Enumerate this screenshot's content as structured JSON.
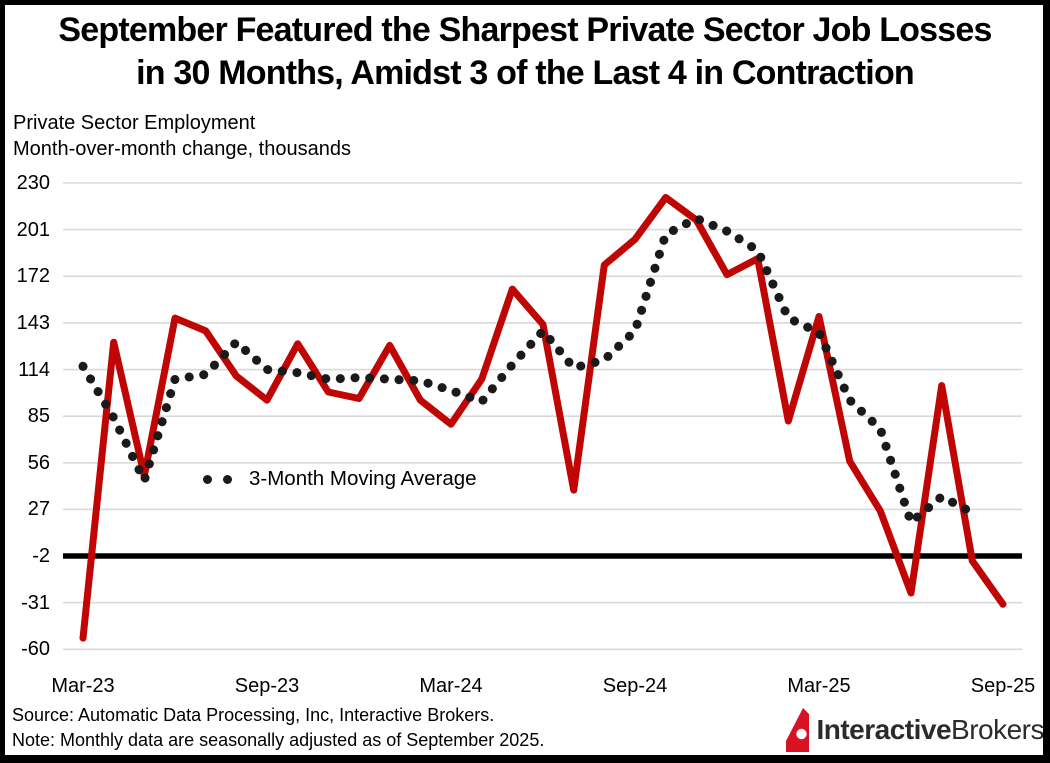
{
  "header": {
    "title_line1": "September Featured the Sharpest Private Sector Job Losses",
    "title_line2": "in 30 Months, Amidst 3 of the Last 4 in Contraction",
    "subtitle_line1": "Private Sector Employment",
    "subtitle_line2": "Month-over-month change, thousands"
  },
  "legend": {
    "label": "3-Month Moving Average"
  },
  "footer": {
    "source": "Source: Automatic Data Processing, Inc, Interactive Brokers.",
    "note": "Note: Monthly data are seasonally adjusted as of September 2025."
  },
  "logo": {
    "text_bold": "Interactive",
    "text_regular": "Brokers",
    "glyph": "ibkr-flag-icon"
  },
  "colors": {
    "line_red": "#c00505",
    "ma_dot": "#1a1a1a",
    "gridline": "#d9d9d9",
    "baseline": "#000000",
    "logo_red": "#d81222",
    "text": "#000000"
  },
  "chart_data": {
    "type": "line",
    "title": "September Featured the Sharpest Private Sector Job Losses in 30 Months, Amidst 3 of the Last 4 in Contraction",
    "xlabel": "",
    "ylabel": "Month-over-month change, thousands",
    "x": [
      "Mar-23",
      "Apr-23",
      "May-23",
      "Jun-23",
      "Jul-23",
      "Aug-23",
      "Sep-23",
      "Oct-23",
      "Nov-23",
      "Dec-23",
      "Jan-24",
      "Feb-24",
      "Mar-24",
      "Apr-24",
      "May-24",
      "Jun-24",
      "Jul-24",
      "Aug-24",
      "Sep-24",
      "Oct-24",
      "Nov-24",
      "Dec-24",
      "Jan-25",
      "Feb-25",
      "Mar-25",
      "Apr-25",
      "May-25",
      "Jun-25",
      "Jul-25",
      "Aug-25",
      "Sep-25"
    ],
    "series": [
      {
        "name": "Private sector employment, monthly change",
        "style": "solid",
        "color": "#c00505",
        "values": [
          -53,
          131,
          48,
          146,
          138,
          110,
          95,
          130,
          100,
          96,
          129,
          95,
          80,
          108,
          164,
          142,
          39,
          179,
          195,
          221,
          207,
          173,
          183,
          82,
          147,
          57,
          26,
          -25,
          104,
          -5,
          -32
        ]
      },
      {
        "name": "3-Month Moving Average",
        "style": "dotted",
        "color": "#1a1a1a",
        "values": [
          116,
          84,
          45,
          108,
          111,
          131,
          114,
          112,
          108,
          109,
          108,
          107,
          101,
          94,
          117,
          138,
          115,
          120,
          138,
          198,
          208,
          200,
          188,
          146,
          137,
          95,
          77,
          19,
          35,
          25,
          null
        ]
      }
    ],
    "y_ticks": [
      230,
      201,
      172,
      143,
      114,
      85,
      56,
      27,
      -2,
      -31,
      -60
    ],
    "x_tick_labels": [
      "Mar-23",
      "Sep-23",
      "Mar-24",
      "Sep-24",
      "Mar-25",
      "Sep-25"
    ],
    "ylim": [
      -60,
      230
    ],
    "baseline_value": -2,
    "grid": true,
    "legend_position": "inside-left-middle"
  }
}
